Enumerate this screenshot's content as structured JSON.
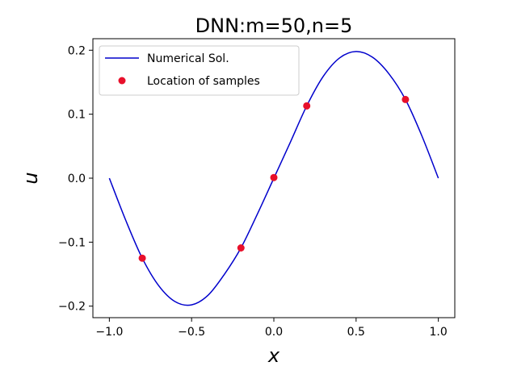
{
  "chart_data": {
    "type": "line",
    "title": "DNN:m=50,n=5",
    "xlabel": "x",
    "ylabel": "u",
    "xlim": [
      -1.1,
      1.1
    ],
    "ylim": [
      -0.218,
      0.218
    ],
    "x_ticks": [
      -1.0,
      -0.5,
      0.0,
      0.5,
      1.0
    ],
    "x_tick_labels": [
      "−1.0",
      "−0.5",
      "0.0",
      "0.5",
      "1.0"
    ],
    "y_ticks": [
      -0.2,
      -0.1,
      0.0,
      0.1,
      0.2
    ],
    "y_tick_labels": [
      "−0.2",
      "−0.1",
      "0.0",
      "0.1",
      "0.2"
    ],
    "grid": false,
    "legend_position": "upper-left",
    "series": [
      {
        "name": "Numerical Sol.",
        "kind": "line",
        "color": "#0000cc",
        "x": [
          -1.0,
          -0.9,
          -0.8,
          -0.7,
          -0.6,
          -0.5,
          -0.4,
          -0.3,
          -0.2,
          -0.1,
          0.0,
          0.1,
          0.2,
          0.3,
          0.4,
          0.5,
          0.6,
          0.7,
          0.8,
          0.9,
          1.0
        ],
        "y": [
          0.0,
          -0.066,
          -0.125,
          -0.168,
          -0.193,
          -0.198,
          -0.183,
          -0.15,
          -0.109,
          -0.056,
          0.0,
          0.056,
          0.113,
          0.159,
          0.188,
          0.198,
          0.189,
          0.163,
          0.123,
          0.066,
          0.0
        ]
      },
      {
        "name": "Location of samples",
        "kind": "scatter",
        "color": "#e8102b",
        "x": [
          -0.8,
          -0.2,
          0.0,
          0.2,
          0.8
        ],
        "y": [
          -0.125,
          -0.109,
          0.001,
          0.113,
          0.123
        ]
      }
    ]
  }
}
